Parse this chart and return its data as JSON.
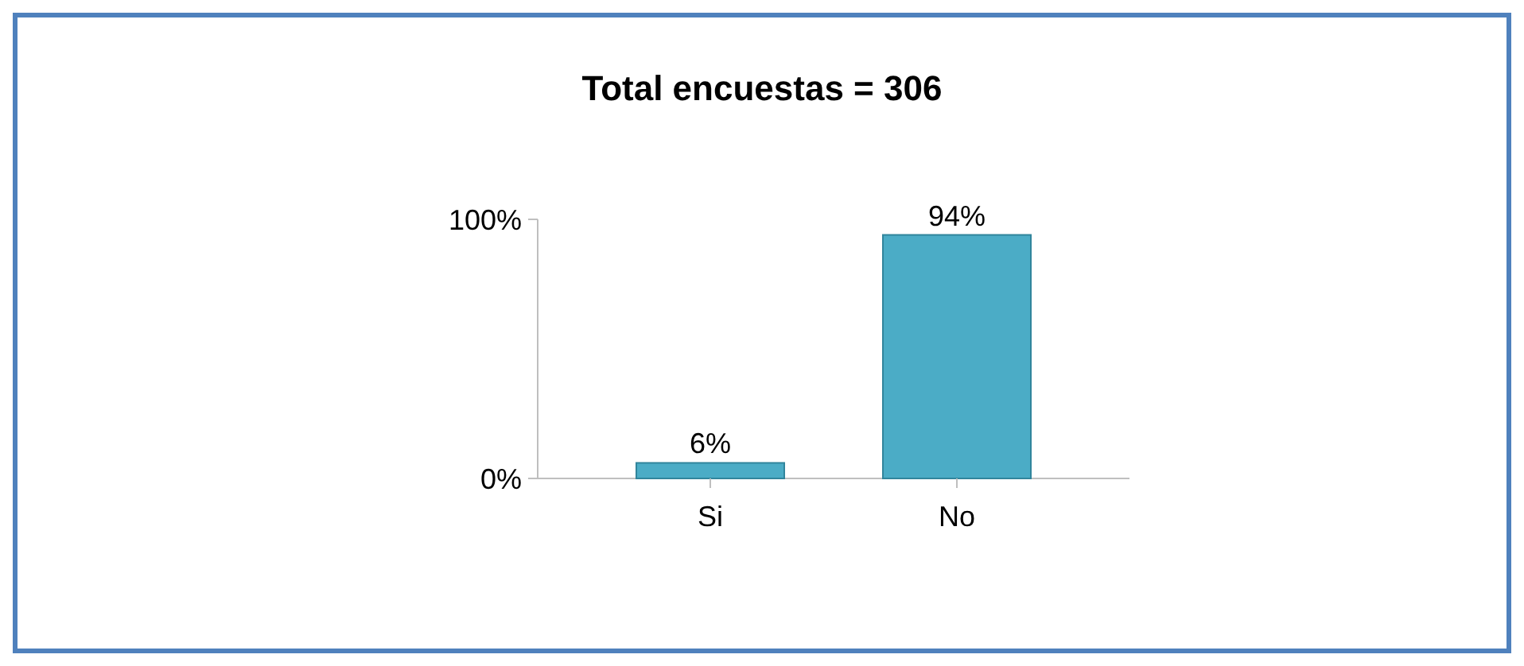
{
  "chart_data": {
    "type": "bar",
    "title": "Total encuestas = 306",
    "categories": [
      "Si",
      "No"
    ],
    "values": [
      6,
      94
    ],
    "color": "#4bacc6",
    "ylim": [
      0,
      100
    ],
    "yticks": [
      {
        "value": 0,
        "label": "0%"
      },
      {
        "value": 100,
        "label": "100%"
      }
    ],
    "value_labels": [
      "6%",
      "94%"
    ]
  }
}
